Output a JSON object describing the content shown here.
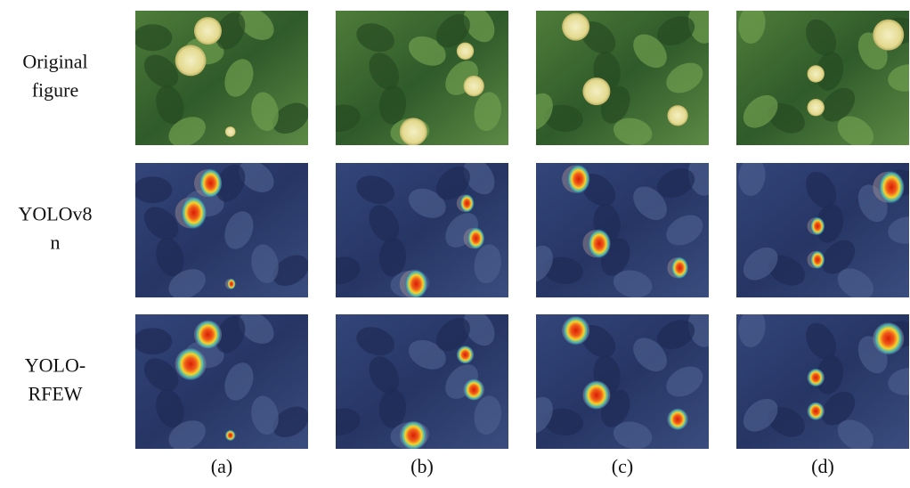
{
  "rows": [
    {
      "label": [
        "Original",
        "figure"
      ]
    },
    {
      "label": [
        "YOLOv8",
        "n"
      ]
    },
    {
      "label": [
        "YOLO-",
        "RFEW"
      ]
    }
  ],
  "columns": [
    "(a)",
    "(b)",
    "(c)",
    "(d)"
  ]
}
